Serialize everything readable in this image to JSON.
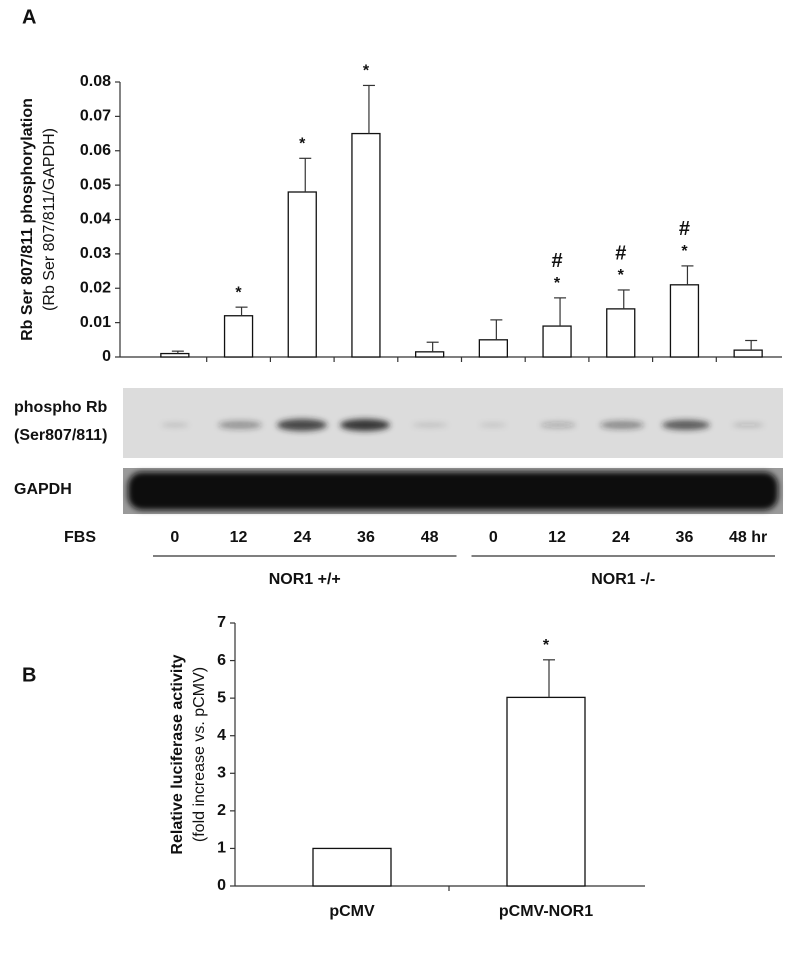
{
  "chart_data": [
    {
      "type": "bar",
      "panel": "A",
      "ylabel": "Rb Ser 807/811 phosphorylation",
      "ylabel_sub": "(Rb Ser 807/811/GAPDH)",
      "xlabel": "FBS",
      "categories": [
        "0",
        "12",
        "24",
        "36",
        "48",
        "0",
        "12",
        "24",
        "36",
        "48 hr"
      ],
      "groups": [
        "NOR1 +/+",
        "NOR1 -/-"
      ],
      "values": [
        0.001,
        0.012,
        0.048,
        0.065,
        0.0015,
        0.005,
        0.009,
        0.014,
        0.021,
        0.002
      ],
      "errors": [
        0.0007,
        0.0025,
        0.0098,
        0.014,
        0.0028,
        0.0058,
        0.0082,
        0.0055,
        0.0055,
        0.0028
      ],
      "annotations": [
        null,
        [
          "*"
        ],
        [
          "*"
        ],
        [
          "*"
        ],
        null,
        null,
        [
          "#",
          "*"
        ],
        [
          "#",
          "*"
        ],
        [
          "#",
          "*"
        ],
        null
      ],
      "color": "#ffffff",
      "ylim": [
        0,
        0.08
      ],
      "yticks": [
        0,
        0.01,
        0.02,
        0.03,
        0.04,
        0.05,
        0.06,
        0.07,
        0.08
      ],
      "blot_labels": [
        "phospho Rb",
        "(Ser807/811)",
        "GAPDH"
      ]
    },
    {
      "type": "bar",
      "panel": "B",
      "ylabel": "Relative luciferase activity",
      "ylabel_sub": "(fold increase vs. pCMV)",
      "categories": [
        "pCMV",
        "pCMV-NOR1"
      ],
      "values": [
        1,
        5.02
      ],
      "errors": [
        null,
        1.0
      ],
      "annotations": [
        null,
        [
          "*"
        ]
      ],
      "color": "#ffffff",
      "ylim": [
        0,
        7
      ],
      "yticks": [
        0,
        1,
        2,
        3,
        4,
        5,
        6,
        7
      ]
    }
  ]
}
